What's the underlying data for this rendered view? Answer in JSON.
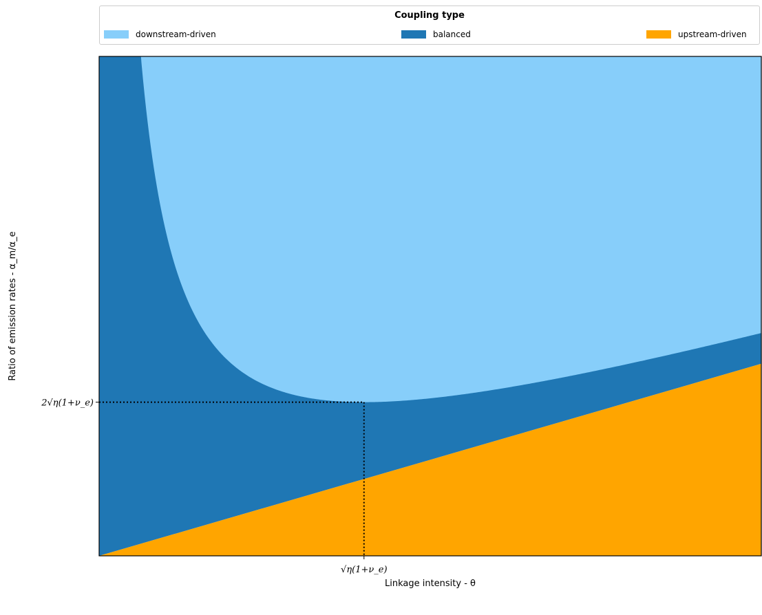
{
  "legend": {
    "title": "Coupling type",
    "entries": [
      {
        "label": "downstream-driven",
        "color": "#87cefa"
      },
      {
        "label": "balanced",
        "color": "#1f77b4"
      },
      {
        "label": "upstream-driven",
        "color": "#ffa500"
      }
    ]
  },
  "chart_data": {
    "type": "area",
    "xlabel": "Linkage intensity - θ",
    "ylabel": "Ratio of emission rates - α_m/α_e",
    "x_tick_label": "√η(1+ν_e)",
    "y_tick_label": "2√η(1+ν_e)",
    "x_tick_value": 1,
    "y_tick_value": 2,
    "xlim": [
      0,
      2.5
    ],
    "ylim": [
      0,
      6.5
    ],
    "grid": false,
    "legend_position": "top",
    "regions": [
      {
        "name": "downstream-driven",
        "color": "#87cefa",
        "boundary": "y > θ + 1/θ"
      },
      {
        "name": "balanced",
        "color": "#1f77b4",
        "boundary": "θ ≤ y ≤ θ + 1/θ"
      },
      {
        "name": "upstream-driven",
        "color": "#ffa500",
        "boundary": "y < θ"
      }
    ],
    "reference_point": {
      "x": 1,
      "y": 2
    }
  }
}
